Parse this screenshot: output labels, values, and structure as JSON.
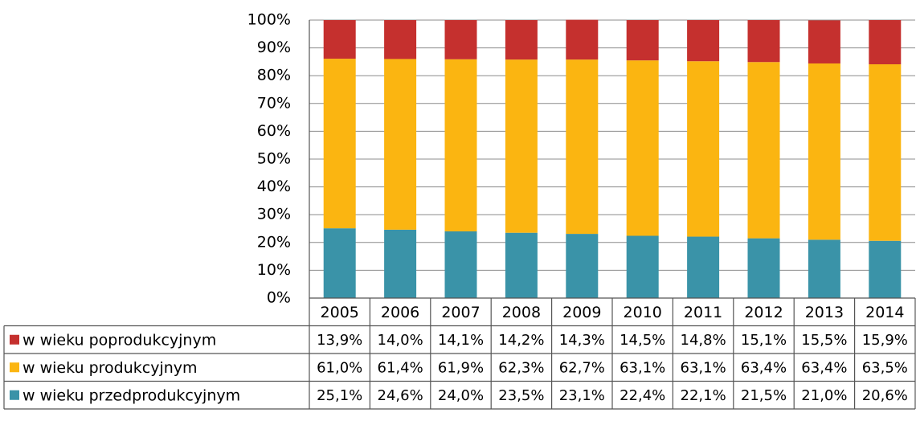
{
  "chart_data": {
    "type": "stacked_bar",
    "categories": [
      "2005",
      "2006",
      "2007",
      "2008",
      "2009",
      "2010",
      "2011",
      "2012",
      "2013",
      "2014"
    ],
    "series": [
      {
        "name": "w wieku przedprodukcyjnym",
        "color": "#3a93a8",
        "values": [
          25.1,
          24.6,
          24.0,
          23.5,
          23.1,
          22.4,
          22.1,
          21.5,
          21.0,
          20.6
        ],
        "value_labels": [
          "25,1%",
          "24,6%",
          "24,0%",
          "23,5%",
          "23,1%",
          "22,4%",
          "22,1%",
          "21,5%",
          "21,0%",
          "20,6%"
        ]
      },
      {
        "name": "w wieku produkcyjnym",
        "color": "#fbb511",
        "values": [
          61.0,
          61.4,
          61.9,
          62.3,
          62.7,
          63.1,
          63.1,
          63.4,
          63.4,
          63.5
        ],
        "value_labels": [
          "61,0%",
          "61,4%",
          "61,9%",
          "62,3%",
          "62,7%",
          "63,1%",
          "63,1%",
          "63,4%",
          "63,4%",
          "63,5%"
        ]
      },
      {
        "name": "w wieku poprodukcyjnym",
        "color": "#c5302e",
        "values": [
          13.9,
          14.0,
          14.1,
          14.2,
          14.3,
          14.5,
          14.8,
          15.1,
          15.5,
          15.9
        ],
        "value_labels": [
          "13,9%",
          "14,0%",
          "14,1%",
          "14,2%",
          "14,3%",
          "14,5%",
          "14,8%",
          "15,1%",
          "15,5%",
          "15,9%"
        ]
      }
    ],
    "ylim": [
      0,
      100
    ],
    "yticks": [
      {
        "value": 0,
        "label": "0%"
      },
      {
        "value": 10,
        "label": "10%"
      },
      {
        "value": 20,
        "label": "20%"
      },
      {
        "value": 30,
        "label": "30%"
      },
      {
        "value": 40,
        "label": "40%"
      },
      {
        "value": 50,
        "label": "50%"
      },
      {
        "value": 60,
        "label": "60%"
      },
      {
        "value": 70,
        "label": "70%"
      },
      {
        "value": 80,
        "label": "80%"
      },
      {
        "value": 90,
        "label": "90%"
      },
      {
        "value": 100,
        "label": "100%"
      }
    ],
    "grid": true
  }
}
